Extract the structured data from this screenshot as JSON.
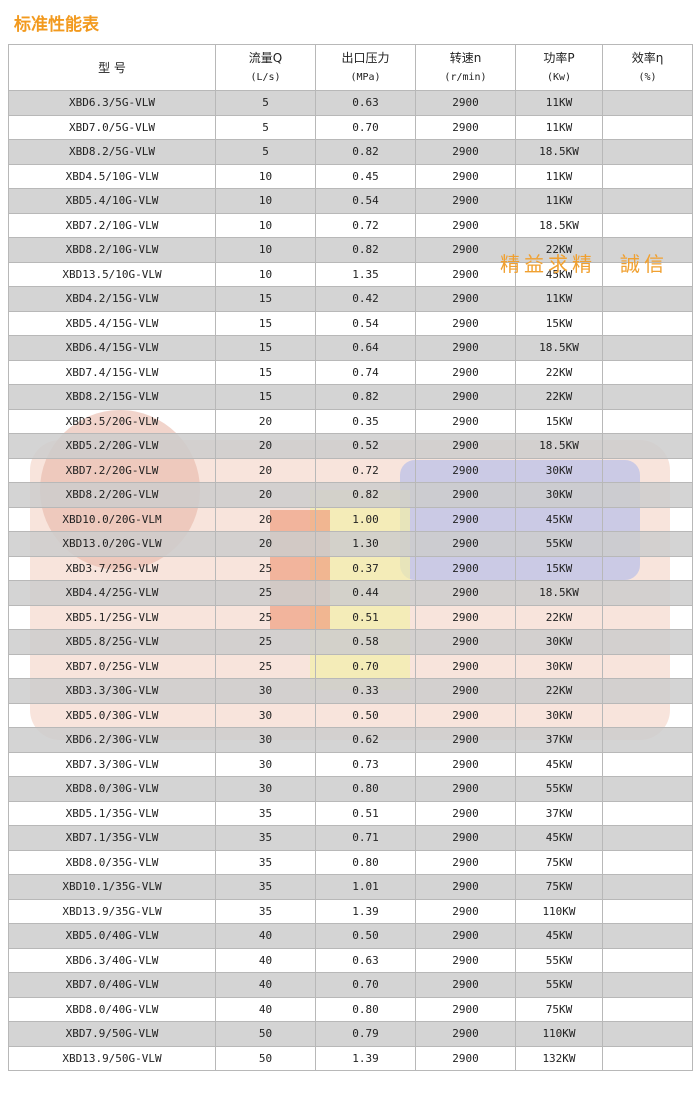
{
  "header": {
    "title": "标准性能表",
    "watermark": "精益求精　誠信"
  },
  "table": {
    "columns": [
      {
        "name": "型 号"
      },
      {
        "name": "流量Q",
        "unit": "(L/s)"
      },
      {
        "name": "出口压力",
        "unit": "(MPa)"
      },
      {
        "name": "转速n",
        "unit": "(r/min)"
      },
      {
        "name": "功率P",
        "unit": "(Kw)"
      },
      {
        "name": "效率η",
        "unit": "(%)"
      }
    ],
    "rows": [
      [
        "XBD6.3/5G-VLW",
        "5",
        "0.63",
        "2900",
        "11KW"
      ],
      [
        "XBD7.0/5G-VLW",
        "5",
        "0.70",
        "2900",
        "11KW"
      ],
      [
        "XBD8.2/5G-VLW",
        "5",
        "0.82",
        "2900",
        "18.5KW"
      ],
      [
        "XBD4.5/10G-VLW",
        "10",
        "0.45",
        "2900",
        "11KW"
      ],
      [
        "XBD5.4/10G-VLW",
        "10",
        "0.54",
        "2900",
        "11KW"
      ],
      [
        "XBD7.2/10G-VLW",
        "10",
        "0.72",
        "2900",
        "18.5KW"
      ],
      [
        "XBD8.2/10G-VLW",
        "10",
        "0.82",
        "2900",
        "22KW"
      ],
      [
        "XBD13.5/10G-VLW",
        "10",
        "1.35",
        "2900",
        "45KW"
      ],
      [
        "XBD4.2/15G-VLW",
        "15",
        "0.42",
        "2900",
        "11KW"
      ],
      [
        "XBD5.4/15G-VLW",
        "15",
        "0.54",
        "2900",
        "15KW"
      ],
      [
        "XBD6.4/15G-VLW",
        "15",
        "0.64",
        "2900",
        "18.5KW"
      ],
      [
        "XBD7.4/15G-VLW",
        "15",
        "0.74",
        "2900",
        "22KW"
      ],
      [
        "XBD8.2/15G-VLW",
        "15",
        "0.82",
        "2900",
        "22KW"
      ],
      [
        "XBD3.5/20G-VLW",
        "20",
        "0.35",
        "2900",
        "15KW"
      ],
      [
        "XBD5.2/20G-VLW",
        "20",
        "0.52",
        "2900",
        "18.5KW"
      ],
      [
        "XBD7.2/20G-VLW",
        "20",
        "0.72",
        "2900",
        "30KW"
      ],
      [
        "XBD8.2/20G-VLW",
        "20",
        "0.82",
        "2900",
        "30KW"
      ],
      [
        "XBD10.0/20G-VLM",
        "20",
        "1.00",
        "2900",
        "45KW"
      ],
      [
        "XBD13.0/20G-VLW",
        "20",
        "1.30",
        "2900",
        "55KW"
      ],
      [
        "XBD3.7/25G-VLW",
        "25",
        "0.37",
        "2900",
        "15KW"
      ],
      [
        "XBD4.4/25G-VLW",
        "25",
        "0.44",
        "2900",
        "18.5KW"
      ],
      [
        "XBD5.1/25G-VLW",
        "25",
        "0.51",
        "2900",
        "22KW"
      ],
      [
        "XBD5.8/25G-VLW",
        "25",
        "0.58",
        "2900",
        "30KW"
      ],
      [
        "XBD7.0/25G-VLW",
        "25",
        "0.70",
        "2900",
        "30KW"
      ],
      [
        "XBD3.3/30G-VLW",
        "30",
        "0.33",
        "2900",
        "22KW"
      ],
      [
        "XBD5.0/30G-VLW",
        "30",
        "0.50",
        "2900",
        "30KW"
      ],
      [
        "XBD6.2/30G-VLW",
        "30",
        "0.62",
        "2900",
        "37KW"
      ],
      [
        "XBD7.3/30G-VLW",
        "30",
        "0.73",
        "2900",
        "45KW"
      ],
      [
        "XBD8.0/30G-VLW",
        "30",
        "0.80",
        "2900",
        "55KW"
      ],
      [
        "XBD5.1/35G-VLW",
        "35",
        "0.51",
        "2900",
        "37KW"
      ],
      [
        "XBD7.1/35G-VLW",
        "35",
        "0.71",
        "2900",
        "45KW"
      ],
      [
        "XBD8.0/35G-VLW",
        "35",
        "0.80",
        "2900",
        "75KW"
      ],
      [
        "XBD10.1/35G-VLW",
        "35",
        "1.01",
        "2900",
        "75KW"
      ],
      [
        "XBD13.9/35G-VLW",
        "35",
        "1.39",
        "2900",
        "110KW"
      ],
      [
        "XBD5.0/40G-VLW",
        "40",
        "0.50",
        "2900",
        "45KW"
      ],
      [
        "XBD6.3/40G-VLW",
        "40",
        "0.63",
        "2900",
        "55KW"
      ],
      [
        "XBD7.0/40G-VLW",
        "40",
        "0.70",
        "2900",
        "55KW"
      ],
      [
        "XBD8.0/40G-VLW",
        "40",
        "0.80",
        "2900",
        "75KW"
      ],
      [
        "XBD7.9/50G-VLW",
        "50",
        "0.79",
        "2900",
        "110KW"
      ],
      [
        "XBD13.9/50G-VLW",
        "50",
        "1.39",
        "2900",
        "132KW"
      ]
    ]
  }
}
